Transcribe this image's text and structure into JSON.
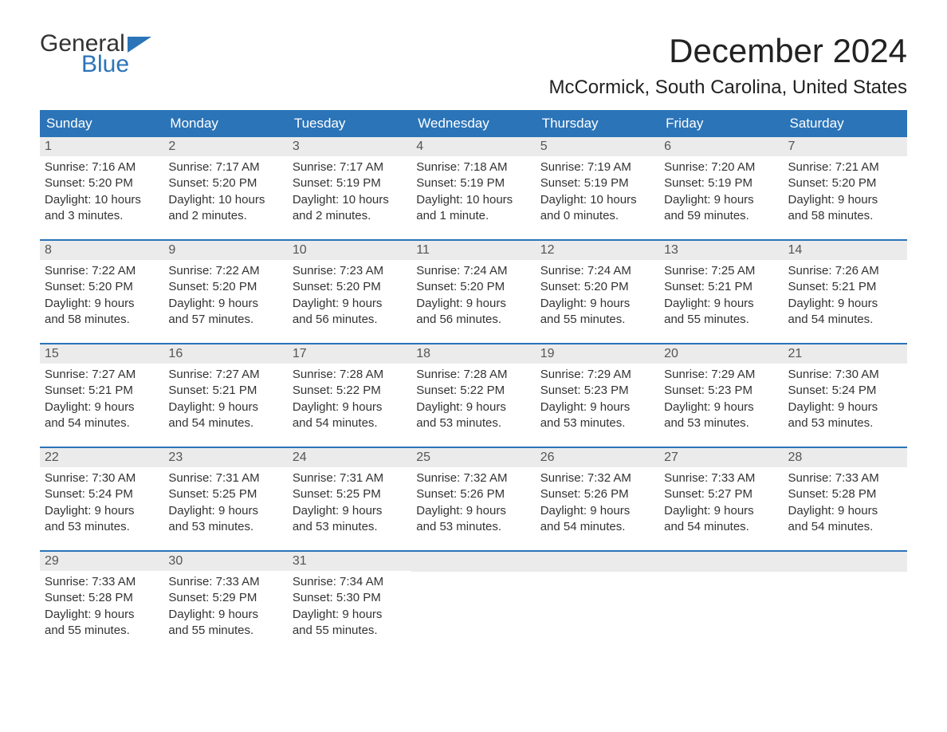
{
  "brand": {
    "word1": "General",
    "word2": "Blue",
    "flag_color": "#2b74b8",
    "text_color": "#333333"
  },
  "title": "December 2024",
  "location": "McCormick, South Carolina, United States",
  "colors": {
    "header_bg": "#2b74b8",
    "header_text": "#ffffff",
    "daynum_bg": "#ebebeb",
    "daynum_text": "#555555",
    "body_text": "#333333",
    "week_divider": "#2b74b8",
    "page_bg": "#ffffff"
  },
  "day_headers": [
    "Sunday",
    "Monday",
    "Tuesday",
    "Wednesday",
    "Thursday",
    "Friday",
    "Saturday"
  ],
  "weeks": [
    [
      {
        "n": "1",
        "sunrise": "Sunrise: 7:16 AM",
        "sunset": "Sunset: 5:20 PM",
        "dl1": "Daylight: 10 hours",
        "dl2": "and 3 minutes."
      },
      {
        "n": "2",
        "sunrise": "Sunrise: 7:17 AM",
        "sunset": "Sunset: 5:20 PM",
        "dl1": "Daylight: 10 hours",
        "dl2": "and 2 minutes."
      },
      {
        "n": "3",
        "sunrise": "Sunrise: 7:17 AM",
        "sunset": "Sunset: 5:19 PM",
        "dl1": "Daylight: 10 hours",
        "dl2": "and 2 minutes."
      },
      {
        "n": "4",
        "sunrise": "Sunrise: 7:18 AM",
        "sunset": "Sunset: 5:19 PM",
        "dl1": "Daylight: 10 hours",
        "dl2": "and 1 minute."
      },
      {
        "n": "5",
        "sunrise": "Sunrise: 7:19 AM",
        "sunset": "Sunset: 5:19 PM",
        "dl1": "Daylight: 10 hours",
        "dl2": "and 0 minutes."
      },
      {
        "n": "6",
        "sunrise": "Sunrise: 7:20 AM",
        "sunset": "Sunset: 5:19 PM",
        "dl1": "Daylight: 9 hours",
        "dl2": "and 59 minutes."
      },
      {
        "n": "7",
        "sunrise": "Sunrise: 7:21 AM",
        "sunset": "Sunset: 5:20 PM",
        "dl1": "Daylight: 9 hours",
        "dl2": "and 58 minutes."
      }
    ],
    [
      {
        "n": "8",
        "sunrise": "Sunrise: 7:22 AM",
        "sunset": "Sunset: 5:20 PM",
        "dl1": "Daylight: 9 hours",
        "dl2": "and 58 minutes."
      },
      {
        "n": "9",
        "sunrise": "Sunrise: 7:22 AM",
        "sunset": "Sunset: 5:20 PM",
        "dl1": "Daylight: 9 hours",
        "dl2": "and 57 minutes."
      },
      {
        "n": "10",
        "sunrise": "Sunrise: 7:23 AM",
        "sunset": "Sunset: 5:20 PM",
        "dl1": "Daylight: 9 hours",
        "dl2": "and 56 minutes."
      },
      {
        "n": "11",
        "sunrise": "Sunrise: 7:24 AM",
        "sunset": "Sunset: 5:20 PM",
        "dl1": "Daylight: 9 hours",
        "dl2": "and 56 minutes."
      },
      {
        "n": "12",
        "sunrise": "Sunrise: 7:24 AM",
        "sunset": "Sunset: 5:20 PM",
        "dl1": "Daylight: 9 hours",
        "dl2": "and 55 minutes."
      },
      {
        "n": "13",
        "sunrise": "Sunrise: 7:25 AM",
        "sunset": "Sunset: 5:21 PM",
        "dl1": "Daylight: 9 hours",
        "dl2": "and 55 minutes."
      },
      {
        "n": "14",
        "sunrise": "Sunrise: 7:26 AM",
        "sunset": "Sunset: 5:21 PM",
        "dl1": "Daylight: 9 hours",
        "dl2": "and 54 minutes."
      }
    ],
    [
      {
        "n": "15",
        "sunrise": "Sunrise: 7:27 AM",
        "sunset": "Sunset: 5:21 PM",
        "dl1": "Daylight: 9 hours",
        "dl2": "and 54 minutes."
      },
      {
        "n": "16",
        "sunrise": "Sunrise: 7:27 AM",
        "sunset": "Sunset: 5:21 PM",
        "dl1": "Daylight: 9 hours",
        "dl2": "and 54 minutes."
      },
      {
        "n": "17",
        "sunrise": "Sunrise: 7:28 AM",
        "sunset": "Sunset: 5:22 PM",
        "dl1": "Daylight: 9 hours",
        "dl2": "and 54 minutes."
      },
      {
        "n": "18",
        "sunrise": "Sunrise: 7:28 AM",
        "sunset": "Sunset: 5:22 PM",
        "dl1": "Daylight: 9 hours",
        "dl2": "and 53 minutes."
      },
      {
        "n": "19",
        "sunrise": "Sunrise: 7:29 AM",
        "sunset": "Sunset: 5:23 PM",
        "dl1": "Daylight: 9 hours",
        "dl2": "and 53 minutes."
      },
      {
        "n": "20",
        "sunrise": "Sunrise: 7:29 AM",
        "sunset": "Sunset: 5:23 PM",
        "dl1": "Daylight: 9 hours",
        "dl2": "and 53 minutes."
      },
      {
        "n": "21",
        "sunrise": "Sunrise: 7:30 AM",
        "sunset": "Sunset: 5:24 PM",
        "dl1": "Daylight: 9 hours",
        "dl2": "and 53 minutes."
      }
    ],
    [
      {
        "n": "22",
        "sunrise": "Sunrise: 7:30 AM",
        "sunset": "Sunset: 5:24 PM",
        "dl1": "Daylight: 9 hours",
        "dl2": "and 53 minutes."
      },
      {
        "n": "23",
        "sunrise": "Sunrise: 7:31 AM",
        "sunset": "Sunset: 5:25 PM",
        "dl1": "Daylight: 9 hours",
        "dl2": "and 53 minutes."
      },
      {
        "n": "24",
        "sunrise": "Sunrise: 7:31 AM",
        "sunset": "Sunset: 5:25 PM",
        "dl1": "Daylight: 9 hours",
        "dl2": "and 53 minutes."
      },
      {
        "n": "25",
        "sunrise": "Sunrise: 7:32 AM",
        "sunset": "Sunset: 5:26 PM",
        "dl1": "Daylight: 9 hours",
        "dl2": "and 53 minutes."
      },
      {
        "n": "26",
        "sunrise": "Sunrise: 7:32 AM",
        "sunset": "Sunset: 5:26 PM",
        "dl1": "Daylight: 9 hours",
        "dl2": "and 54 minutes."
      },
      {
        "n": "27",
        "sunrise": "Sunrise: 7:33 AM",
        "sunset": "Sunset: 5:27 PM",
        "dl1": "Daylight: 9 hours",
        "dl2": "and 54 minutes."
      },
      {
        "n": "28",
        "sunrise": "Sunrise: 7:33 AM",
        "sunset": "Sunset: 5:28 PM",
        "dl1": "Daylight: 9 hours",
        "dl2": "and 54 minutes."
      }
    ],
    [
      {
        "n": "29",
        "sunrise": "Sunrise: 7:33 AM",
        "sunset": "Sunset: 5:28 PM",
        "dl1": "Daylight: 9 hours",
        "dl2": "and 55 minutes."
      },
      {
        "n": "30",
        "sunrise": "Sunrise: 7:33 AM",
        "sunset": "Sunset: 5:29 PM",
        "dl1": "Daylight: 9 hours",
        "dl2": "and 55 minutes."
      },
      {
        "n": "31",
        "sunrise": "Sunrise: 7:34 AM",
        "sunset": "Sunset: 5:30 PM",
        "dl1": "Daylight: 9 hours",
        "dl2": "and 55 minutes."
      },
      {
        "empty": true
      },
      {
        "empty": true
      },
      {
        "empty": true
      },
      {
        "empty": true
      }
    ]
  ]
}
